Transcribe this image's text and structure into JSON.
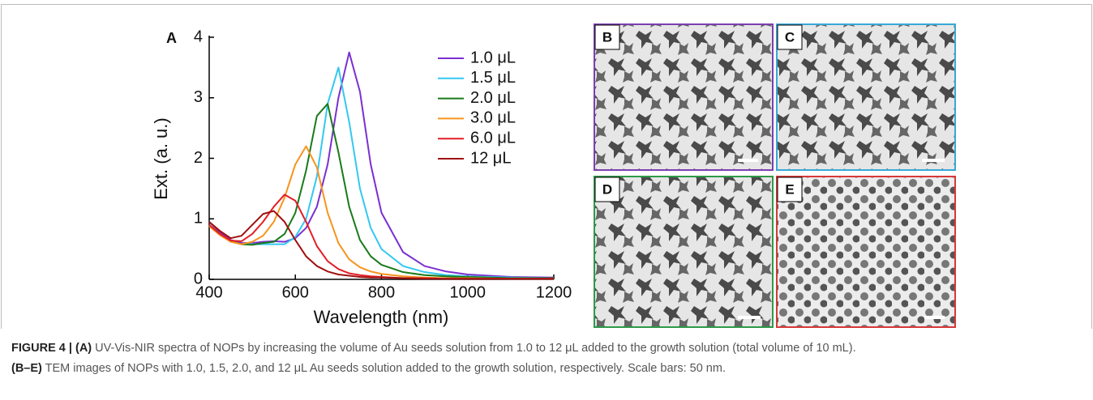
{
  "chart_data": {
    "type": "line",
    "panel_label": "A",
    "xlabel": "Wavelength (nm)",
    "ylabel": "Ext. (a. u.)",
    "x": [
      400,
      425,
      450,
      475,
      500,
      525,
      550,
      575,
      600,
      625,
      650,
      675,
      700,
      725,
      750,
      775,
      800,
      850,
      900,
      950,
      1000,
      1100,
      1200
    ],
    "series": [
      {
        "name": "1.0 μL",
        "color": "#7b2fd0",
        "values": [
          0.95,
          0.78,
          0.65,
          0.6,
          0.6,
          0.62,
          0.63,
          0.62,
          0.68,
          0.85,
          1.2,
          1.9,
          3.0,
          3.75,
          3.1,
          1.9,
          1.1,
          0.45,
          0.22,
          0.13,
          0.08,
          0.04,
          0.03
        ]
      },
      {
        "name": "1.5 μL",
        "color": "#33c8f0",
        "values": [
          0.9,
          0.75,
          0.63,
          0.58,
          0.58,
          0.58,
          0.58,
          0.58,
          0.7,
          1.0,
          1.7,
          2.9,
          3.5,
          2.6,
          1.5,
          0.85,
          0.5,
          0.22,
          0.12,
          0.07,
          0.05,
          0.03,
          0.02
        ]
      },
      {
        "name": "2.0 μL",
        "color": "#1a7a1a",
        "values": [
          0.9,
          0.75,
          0.63,
          0.58,
          0.57,
          0.6,
          0.62,
          0.75,
          1.1,
          1.8,
          2.7,
          2.9,
          2.1,
          1.2,
          0.65,
          0.38,
          0.24,
          0.12,
          0.07,
          0.05,
          0.04,
          0.02,
          0.02
        ]
      },
      {
        "name": "3.0 μL",
        "color": "#f7941d",
        "values": [
          0.88,
          0.73,
          0.62,
          0.58,
          0.62,
          0.72,
          0.95,
          1.35,
          1.9,
          2.2,
          1.85,
          1.1,
          0.6,
          0.33,
          0.2,
          0.13,
          0.09,
          0.05,
          0.03,
          0.02,
          0.02,
          0.01,
          0.01
        ]
      },
      {
        "name": "6.0 μL",
        "color": "#e41e26",
        "values": [
          0.9,
          0.75,
          0.64,
          0.63,
          0.75,
          0.95,
          1.2,
          1.4,
          1.3,
          0.95,
          0.55,
          0.3,
          0.17,
          0.1,
          0.07,
          0.05,
          0.04,
          0.02,
          0.02,
          0.01,
          0.01,
          0.01,
          0.01
        ]
      },
      {
        "name": "12 μL",
        "color": "#a01010",
        "values": [
          0.95,
          0.8,
          0.68,
          0.72,
          0.9,
          1.08,
          1.13,
          0.95,
          0.65,
          0.38,
          0.22,
          0.13,
          0.08,
          0.06,
          0.04,
          0.03,
          0.03,
          0.02,
          0.01,
          0.01,
          0.01,
          0.01,
          0.01
        ]
      }
    ],
    "xlim": [
      400,
      1200
    ],
    "xticks": [
      400,
      600,
      800,
      1000,
      1200
    ],
    "ylim": [
      0,
      4
    ],
    "yticks": [
      0,
      1,
      2,
      3,
      4
    ]
  },
  "panels": [
    "B",
    "C",
    "D",
    "E"
  ],
  "caption": [
    {
      "head": "FIGURE 4 | (A)",
      "text": " UV-Vis-NIR spectra of NOPs by increasing the volume of Au seeds solution from 1.0 to 12 μL added to the growth solution (total volume of 10 mL)."
    },
    {
      "head": "(B–E)",
      "text": " TEM images of NOPs with 1.0, 1.5, 2.0, and 12 μL Au seeds solution added to the growth solution, respectively. Scale bars: 50 nm."
    }
  ]
}
